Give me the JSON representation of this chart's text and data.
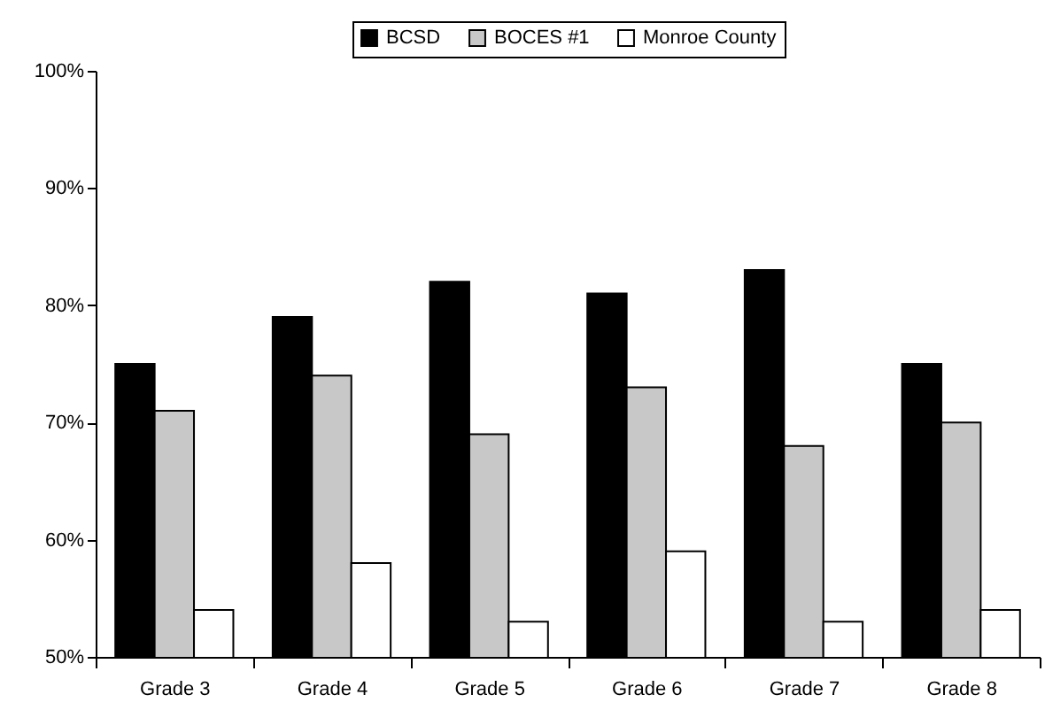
{
  "chart_data": {
    "type": "bar",
    "categories": [
      "Grade 3",
      "Grade 4",
      "Grade 5",
      "Grade 6",
      "Grade 7",
      "Grade 8"
    ],
    "series": [
      {
        "name": "BCSD",
        "color": "#000000",
        "values": [
          75,
          79,
          82,
          81,
          83,
          75
        ]
      },
      {
        "name": "BOCES #1",
        "color": "#c8c8c8",
        "values": [
          71,
          74,
          69,
          73,
          68,
          70
        ]
      },
      {
        "name": "Monroe County",
        "color": "#ffffff",
        "values": [
          54,
          58,
          53,
          59,
          53,
          54
        ]
      }
    ],
    "ylim": [
      50,
      100
    ],
    "yticks": [
      {
        "value": 50,
        "label": "50%"
      },
      {
        "value": 60,
        "label": "60%"
      },
      {
        "value": 70,
        "label": "70%"
      },
      {
        "value": 80,
        "label": "80%"
      },
      {
        "value": 90,
        "label": "90%"
      },
      {
        "value": 100,
        "label": "100%"
      }
    ],
    "grid": false,
    "legend": "top"
  }
}
